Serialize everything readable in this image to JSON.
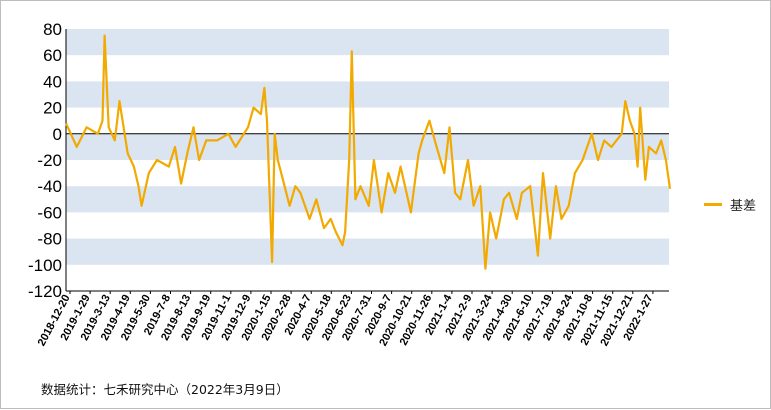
{
  "source_note": "数据统计：七禾研究中心（2022年3月9日）",
  "colors": {
    "line": "#f2a900",
    "band": "#dbe5f1",
    "zero_line": "#000000"
  },
  "chart_data": {
    "type": "line",
    "title": "",
    "xlabel": "",
    "ylabel": "",
    "ylim": [
      -120,
      80
    ],
    "yticks": [
      80,
      60,
      40,
      20,
      0,
      -20,
      -40,
      -60,
      -80,
      -100,
      -120
    ],
    "grid": "alternating horizontal bands",
    "legend_position": "right",
    "x_tick_labels": [
      "2018-12-20",
      "2019-1-29",
      "2019-3-13",
      "2019-4-19",
      "2019-5-30",
      "2019-7-8",
      "2019-8-13",
      "2019-9-19",
      "2019-11-1",
      "2019-12-9",
      "2020-1-15",
      "2020-2-28",
      "2020-4-7",
      "2020-5-18",
      "2020-6-23",
      "2020-7-31",
      "2020-9-7",
      "2020-10-21",
      "2020-11-26",
      "2021-1-4",
      "2021-2-9",
      "2021-3-24",
      "2021-4-30",
      "2021-6-10",
      "2021-7-19",
      "2021-8-24",
      "2021-10-8",
      "2021-11-15",
      "2021-12-21",
      "2022-1-27"
    ],
    "series": [
      {
        "name": "基差",
        "x": [
          "2018-12-20",
          "2019-1-10",
          "2019-1-29",
          "2019-2-20",
          "2019-3-1",
          "2019-3-5",
          "2019-3-13",
          "2019-3-25",
          "2019-4-3",
          "2019-4-19",
          "2019-5-1",
          "2019-5-10",
          "2019-5-16",
          "2019-5-30",
          "2019-6-15",
          "2019-7-8",
          "2019-7-20",
          "2019-8-1",
          "2019-8-13",
          "2019-8-25",
          "2019-9-5",
          "2019-9-19",
          "2019-10-10",
          "2019-11-1",
          "2019-11-15",
          "2019-12-9",
          "2019-12-20",
          "2020-1-3",
          "2020-1-10",
          "2020-1-15",
          "2020-1-25",
          "2020-1-30",
          "2020-2-5",
          "2020-2-15",
          "2020-2-28",
          "2020-3-10",
          "2020-3-20",
          "2020-4-7",
          "2020-4-20",
          "2020-5-5",
          "2020-5-18",
          "2020-5-28",
          "2020-6-10",
          "2020-6-15",
          "2020-6-23",
          "2020-6-28",
          "2020-7-5",
          "2020-7-15",
          "2020-7-31",
          "2020-8-10",
          "2020-8-25",
          "2020-9-7",
          "2020-9-20",
          "2020-10-1",
          "2020-10-21",
          "2020-11-5",
          "2020-11-12",
          "2020-11-26",
          "2020-12-10",
          "2020-12-25",
          "2021-1-4",
          "2021-1-15",
          "2021-1-25",
          "2021-2-9",
          "2021-2-20",
          "2021-3-5",
          "2021-3-15",
          "2021-3-24",
          "2021-4-5",
          "2021-4-20",
          "2021-4-30",
          "2021-5-15",
          "2021-5-25",
          "2021-6-10",
          "2021-6-25",
          "2021-7-5",
          "2021-7-19",
          "2021-7-30",
          "2021-8-10",
          "2021-8-24",
          "2021-9-5",
          "2021-9-20",
          "2021-10-8",
          "2021-10-20",
          "2021-11-1",
          "2021-11-15",
          "2021-11-25",
          "2021-12-5",
          "2021-12-12",
          "2021-12-21",
          "2021-12-30",
          "2022-1-5",
          "2022-1-10",
          "2022-1-20",
          "2022-1-27",
          "2022-2-10",
          "2022-2-20",
          "2022-3-1",
          "2022-3-9"
        ],
        "values": [
          8,
          -10,
          5,
          0,
          10,
          75,
          5,
          -5,
          25,
          -15,
          -25,
          -40,
          -55,
          -30,
          -20,
          -25,
          -10,
          -38,
          -15,
          5,
          -20,
          -5,
          -5,
          0,
          -10,
          5,
          20,
          15,
          35,
          10,
          -98,
          0,
          -20,
          -35,
          -55,
          -40,
          -45,
          -65,
          -50,
          -72,
          -65,
          -75,
          -85,
          -75,
          -20,
          63,
          -50,
          -40,
          -55,
          -20,
          -60,
          -30,
          -45,
          -25,
          -60,
          -15,
          -5,
          10,
          -10,
          -30,
          5,
          -45,
          -50,
          -20,
          -55,
          -40,
          -103,
          -60,
          -80,
          -50,
          -45,
          -65,
          -45,
          -40,
          -93,
          -30,
          -80,
          -40,
          -65,
          -55,
          -30,
          -20,
          0,
          -20,
          -5,
          -10,
          -5,
          0,
          25,
          10,
          0,
          -25,
          20,
          -35,
          -10,
          -15,
          -5,
          -20,
          -42
        ]
      }
    ]
  }
}
